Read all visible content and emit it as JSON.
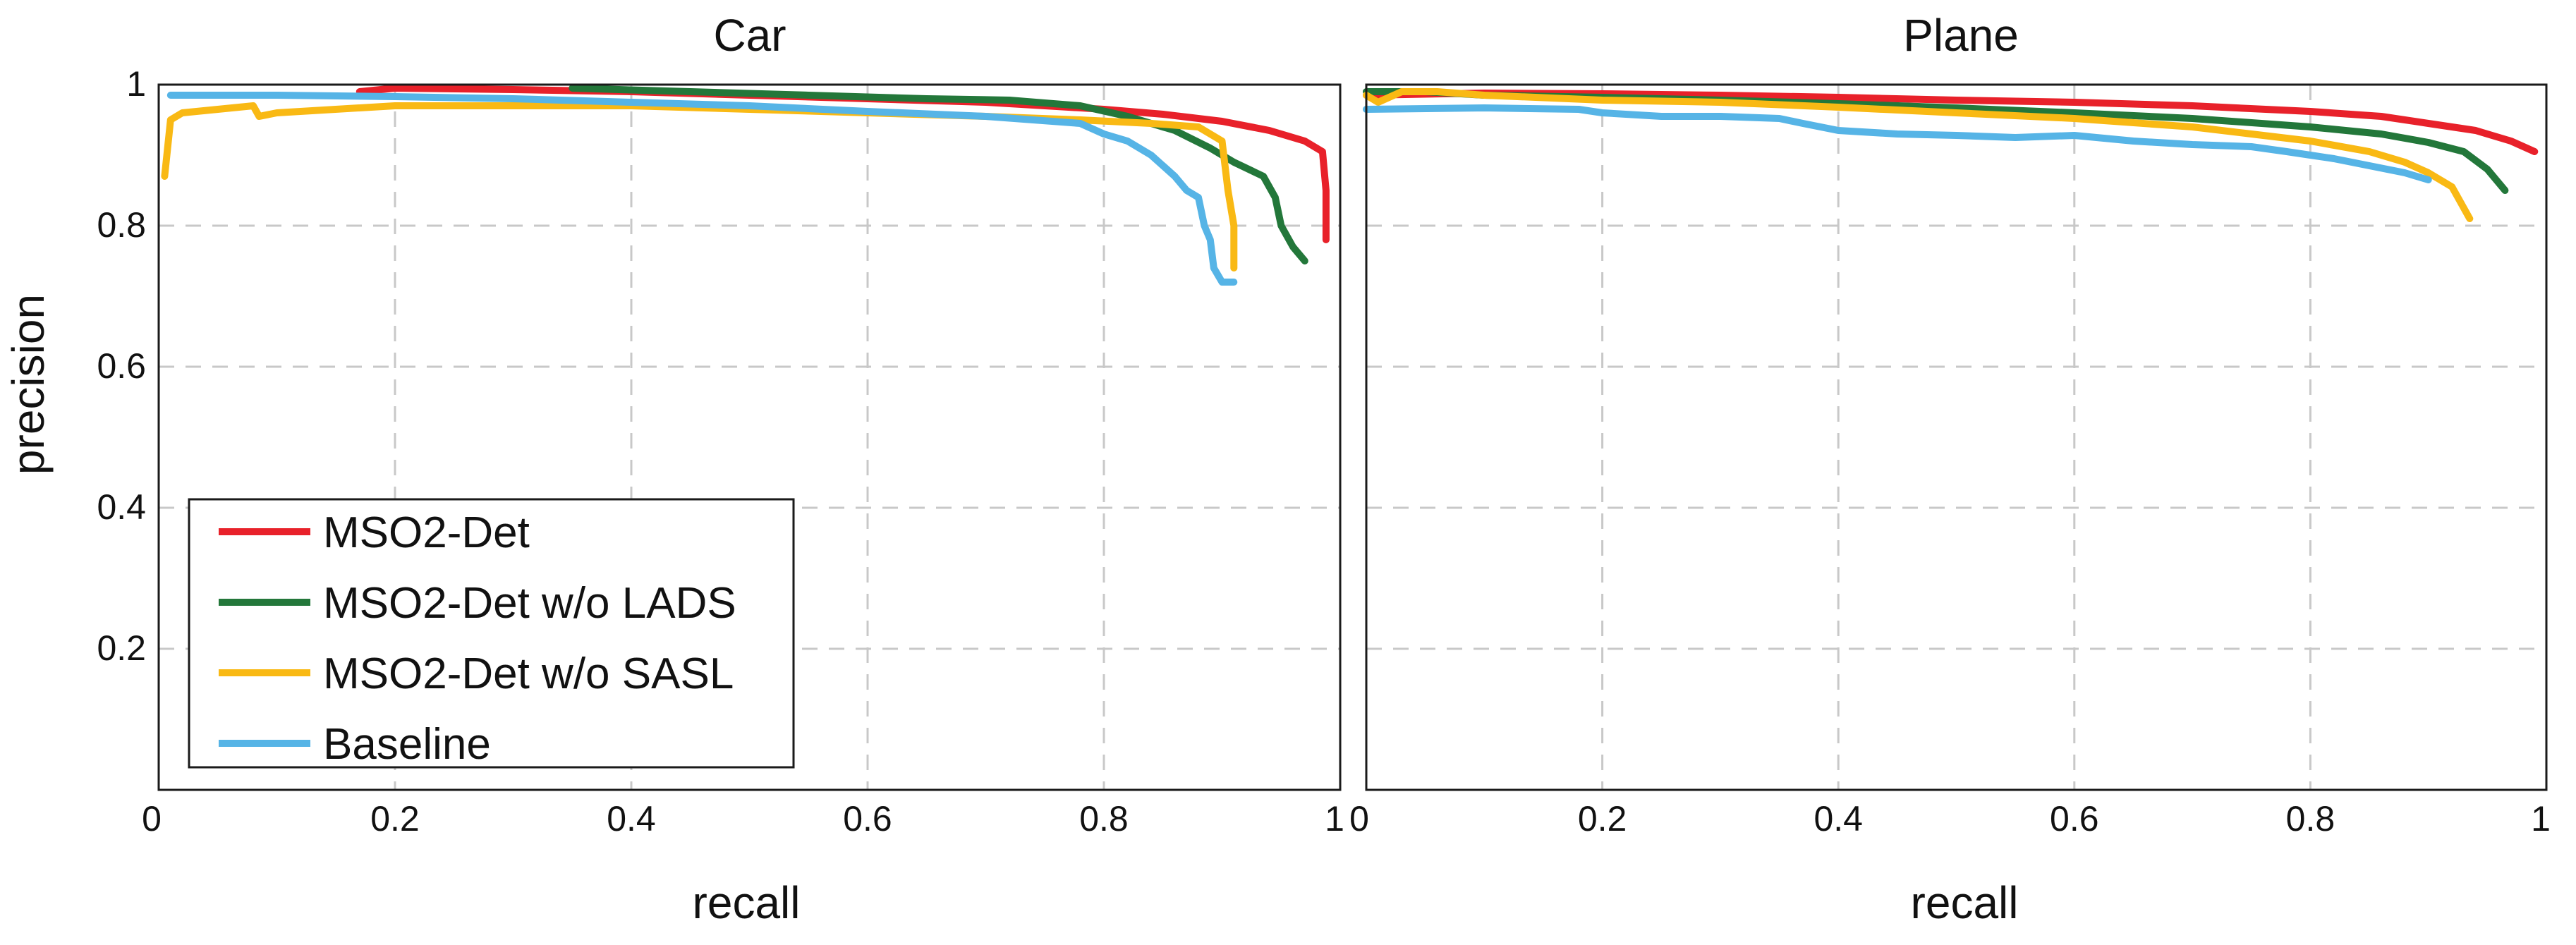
{
  "ylabel": "precision",
  "xlabel": "recall",
  "colors": {
    "MSO2-Det": "#e8212a",
    "MSO2-Det w/o LADS": "#23773a",
    "MSO2-Det w/o SASL": "#f9b914",
    "Baseline": "#56b4e6",
    "grid": "#c8c8c8",
    "frame": "#1a1a1a"
  },
  "legend": {
    "placement": "bottom-left of left panel",
    "entries": [
      "MSO2-Det",
      "MSO2-Det w/o LADS",
      "MSO2-Det w/o SASL",
      "Baseline"
    ]
  },
  "chart_data": [
    {
      "type": "line",
      "title": "Car",
      "xlabel": "recall",
      "ylabel": "precision",
      "xlim": [
        0,
        1
      ],
      "ylim": [
        0,
        1
      ],
      "grid": true,
      "x_ticks": [
        "0",
        "0.2",
        "0.4",
        "0.6",
        "0.8",
        "1"
      ],
      "y_ticks": [
        "0.2",
        "0.4",
        "0.6",
        "0.8",
        "1"
      ],
      "series": [
        {
          "name": "MSO2-Det",
          "points": [
            [
              0.17,
              0.99
            ],
            [
              0.2,
              0.995
            ],
            [
              0.3,
              0.993
            ],
            [
              0.4,
              0.99
            ],
            [
              0.5,
              0.985
            ],
            [
              0.6,
              0.98
            ],
            [
              0.7,
              0.975
            ],
            [
              0.8,
              0.965
            ],
            [
              0.85,
              0.958
            ],
            [
              0.9,
              0.948
            ],
            [
              0.94,
              0.935
            ],
            [
              0.97,
              0.92
            ],
            [
              0.985,
              0.905
            ],
            [
              0.988,
              0.85
            ],
            [
              0.988,
              0.78
            ]
          ]
        },
        {
          "name": "MSO2-Det w/o LADS",
          "points": [
            [
              0.35,
              0.995
            ],
            [
              0.45,
              0.99
            ],
            [
              0.55,
              0.985
            ],
            [
              0.65,
              0.98
            ],
            [
              0.72,
              0.978
            ],
            [
              0.78,
              0.97
            ],
            [
              0.82,
              0.955
            ],
            [
              0.86,
              0.935
            ],
            [
              0.89,
              0.91
            ],
            [
              0.91,
              0.89
            ],
            [
              0.935,
              0.87
            ],
            [
              0.945,
              0.84
            ],
            [
              0.95,
              0.8
            ],
            [
              0.96,
              0.77
            ],
            [
              0.97,
              0.75
            ]
          ]
        },
        {
          "name": "MSO2-Det w/o SASL",
          "points": [
            [
              0.005,
              0.87
            ],
            [
              0.01,
              0.95
            ],
            [
              0.02,
              0.96
            ],
            [
              0.05,
              0.965
            ],
            [
              0.08,
              0.97
            ],
            [
              0.085,
              0.955
            ],
            [
              0.1,
              0.96
            ],
            [
              0.2,
              0.97
            ],
            [
              0.3,
              0.97
            ],
            [
              0.4,
              0.97
            ],
            [
              0.5,
              0.965
            ],
            [
              0.6,
              0.96
            ],
            [
              0.7,
              0.955
            ],
            [
              0.78,
              0.95
            ],
            [
              0.84,
              0.945
            ],
            [
              0.88,
              0.94
            ],
            [
              0.9,
              0.92
            ],
            [
              0.905,
              0.85
            ],
            [
              0.91,
              0.8
            ],
            [
              0.91,
              0.74
            ]
          ]
        },
        {
          "name": "Baseline",
          "points": [
            [
              0.01,
              0.985
            ],
            [
              0.1,
              0.985
            ],
            [
              0.2,
              0.983
            ],
            [
              0.3,
              0.98
            ],
            [
              0.4,
              0.975
            ],
            [
              0.5,
              0.97
            ],
            [
              0.6,
              0.962
            ],
            [
              0.7,
              0.955
            ],
            [
              0.78,
              0.945
            ],
            [
              0.8,
              0.93
            ],
            [
              0.82,
              0.92
            ],
            [
              0.84,
              0.9
            ],
            [
              0.86,
              0.87
            ],
            [
              0.87,
              0.85
            ],
            [
              0.88,
              0.84
            ],
            [
              0.885,
              0.8
            ],
            [
              0.89,
              0.78
            ],
            [
              0.893,
              0.74
            ],
            [
              0.9,
              0.72
            ],
            [
              0.91,
              0.72
            ]
          ]
        }
      ]
    },
    {
      "type": "line",
      "title": "Plane",
      "xlabel": "recall",
      "ylabel": "",
      "xlim": [
        0,
        1
      ],
      "ylim": [
        0,
        1
      ],
      "grid": true,
      "x_ticks": [
        "0",
        "0.2",
        "0.4",
        "0.6",
        "0.8",
        "1"
      ],
      "y_ticks": [],
      "series": [
        {
          "name": "MSO2-Det",
          "points": [
            [
              0.0,
              0.985
            ],
            [
              0.1,
              0.988
            ],
            [
              0.2,
              0.987
            ],
            [
              0.3,
              0.985
            ],
            [
              0.4,
              0.982
            ],
            [
              0.5,
              0.978
            ],
            [
              0.6,
              0.975
            ],
            [
              0.7,
              0.97
            ],
            [
              0.8,
              0.962
            ],
            [
              0.86,
              0.955
            ],
            [
              0.9,
              0.945
            ],
            [
              0.94,
              0.935
            ],
            [
              0.97,
              0.92
            ],
            [
              0.99,
              0.905
            ]
          ]
        },
        {
          "name": "MSO2-Det w/o LADS",
          "points": [
            [
              0.0,
              0.99
            ],
            [
              0.05,
              0.99
            ],
            [
              0.1,
              0.985
            ],
            [
              0.2,
              0.982
            ],
            [
              0.3,
              0.978
            ],
            [
              0.4,
              0.973
            ],
            [
              0.5,
              0.967
            ],
            [
              0.6,
              0.96
            ],
            [
              0.7,
              0.952
            ],
            [
              0.8,
              0.94
            ],
            [
              0.86,
              0.93
            ],
            [
              0.9,
              0.918
            ],
            [
              0.93,
              0.905
            ],
            [
              0.95,
              0.88
            ],
            [
              0.965,
              0.85
            ]
          ]
        },
        {
          "name": "MSO2-Det w/o SASL",
          "points": [
            [
              0.0,
              0.985
            ],
            [
              0.01,
              0.975
            ],
            [
              0.03,
              0.99
            ],
            [
              0.06,
              0.99
            ],
            [
              0.1,
              0.985
            ],
            [
              0.2,
              0.978
            ],
            [
              0.3,
              0.975
            ],
            [
              0.4,
              0.968
            ],
            [
              0.5,
              0.96
            ],
            [
              0.6,
              0.952
            ],
            [
              0.7,
              0.94
            ],
            [
              0.75,
              0.93
            ],
            [
              0.8,
              0.92
            ],
            [
              0.85,
              0.905
            ],
            [
              0.88,
              0.89
            ],
            [
              0.9,
              0.875
            ],
            [
              0.92,
              0.855
            ],
            [
              0.935,
              0.81
            ]
          ]
        },
        {
          "name": "Baseline",
          "points": [
            [
              0.0,
              0.965
            ],
            [
              0.1,
              0.967
            ],
            [
              0.18,
              0.965
            ],
            [
              0.2,
              0.96
            ],
            [
              0.25,
              0.955
            ],
            [
              0.3,
              0.955
            ],
            [
              0.35,
              0.952
            ],
            [
              0.37,
              0.945
            ],
            [
              0.4,
              0.935
            ],
            [
              0.45,
              0.93
            ],
            [
              0.5,
              0.928
            ],
            [
              0.55,
              0.925
            ],
            [
              0.6,
              0.928
            ],
            [
              0.65,
              0.92
            ],
            [
              0.7,
              0.915
            ],
            [
              0.75,
              0.912
            ],
            [
              0.78,
              0.905
            ],
            [
              0.8,
              0.9
            ],
            [
              0.82,
              0.895
            ],
            [
              0.85,
              0.885
            ],
            [
              0.88,
              0.875
            ],
            [
              0.9,
              0.865
            ]
          ]
        }
      ]
    }
  ]
}
